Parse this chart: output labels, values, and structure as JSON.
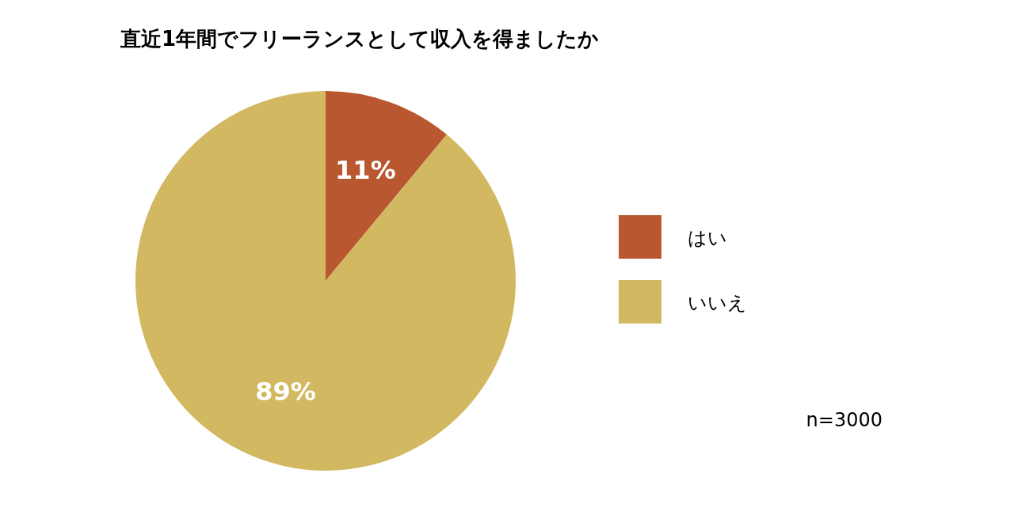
{
  "chart_data": {
    "type": "pie",
    "title": "直近1年間でフリーランスとして収入を得ましたか",
    "categories": [
      "はい",
      "いいえ"
    ],
    "values": [
      11,
      89
    ],
    "colors": [
      "#b85730",
      "#d3b862"
    ],
    "value_labels": [
      "11%",
      "89%"
    ],
    "legend": "right",
    "annotations": [
      "n=3000"
    ]
  }
}
